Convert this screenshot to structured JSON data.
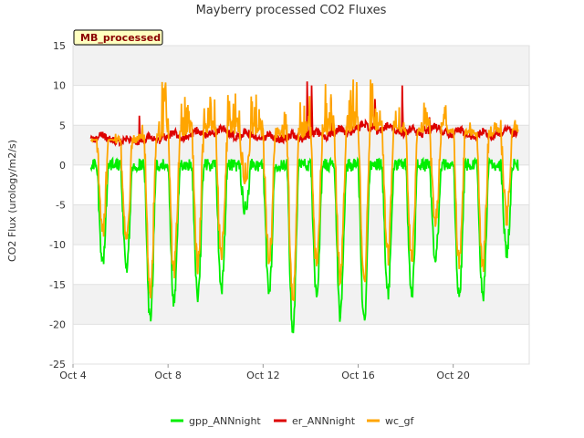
{
  "chart_data": {
    "type": "line",
    "title": "Mayberry processed CO2 Fluxes",
    "badge": "MB_processed",
    "xlabel": "",
    "ylabel": "CO2 Flux (urology/m2/s)",
    "ylim": [
      -25,
      15
    ],
    "xlim": [
      0,
      19.2
    ],
    "yticks": [
      -25,
      -20,
      -15,
      -10,
      -5,
      0,
      5,
      10,
      15
    ],
    "xticks": [
      {
        "x": 0,
        "label": "Oct 4"
      },
      {
        "x": 4,
        "label": "Oct 8"
      },
      {
        "x": 8,
        "label": "Oct 12"
      },
      {
        "x": 12,
        "label": "Oct 16"
      },
      {
        "x": 16,
        "label": "Oct 20"
      }
    ],
    "grid": true,
    "legend_position": "bottom",
    "series": [
      {
        "name": "gpp_ANNnight",
        "color": "#00ee00"
      },
      {
        "name": "er_ANNnight",
        "color": "#dd0000"
      },
      {
        "name": "wc_gf",
        "color": "#ffa500"
      }
    ],
    "days": [
      {
        "min": -12.1,
        "er": 3.2,
        "wmax": 3.0
      },
      {
        "min": -13.0,
        "er": 2.8,
        "wmax": 4.0
      },
      {
        "min": -19.6,
        "er": 3.0,
        "wmax": 5.5
      },
      {
        "min": -17.5,
        "er": 3.5,
        "wmax": 10.5
      },
      {
        "min": -16.5,
        "er": 3.8,
        "wmax": 8.5
      },
      {
        "min": -15.8,
        "er": 4.0,
        "wmax": 9.0
      },
      {
        "min": -5.5,
        "er": 3.6,
        "wmax": 9.5
      },
      {
        "min": -16.2,
        "er": 3.2,
        "wmax": 7.5
      },
      {
        "min": -20.5,
        "er": 3.3,
        "wmax": 8.0
      },
      {
        "min": -16.5,
        "er": 3.6,
        "wmax": 10.2
      },
      {
        "min": -19.0,
        "er": 4.0,
        "wmax": 9.5
      },
      {
        "min": -19.8,
        "er": 4.6,
        "wmax": 11.0
      },
      {
        "min": -16.5,
        "er": 4.3,
        "wmax": 7.5
      },
      {
        "min": -16.5,
        "er": 4.0,
        "wmax": 5.5
      },
      {
        "min": -12.0,
        "er": 4.3,
        "wmax": 8.0
      },
      {
        "min": -16.5,
        "er": 3.9,
        "wmax": 5.5
      },
      {
        "min": -16.8,
        "er": 3.6,
        "wmax": 5.0
      },
      {
        "min": -11.0,
        "er": 4.0,
        "wmax": 6.0
      }
    ],
    "er_spikes": [
      {
        "x": 2.8,
        "y": 6.2
      },
      {
        "x": 9.85,
        "y": 10.5
      },
      {
        "x": 10.05,
        "y": 10.0
      },
      {
        "x": 10.85,
        "y": 8.5
      },
      {
        "x": 12.7,
        "y": 8.3
      },
      {
        "x": 13.85,
        "y": 10.0
      },
      {
        "x": 15.0,
        "y": 6.0
      }
    ]
  }
}
